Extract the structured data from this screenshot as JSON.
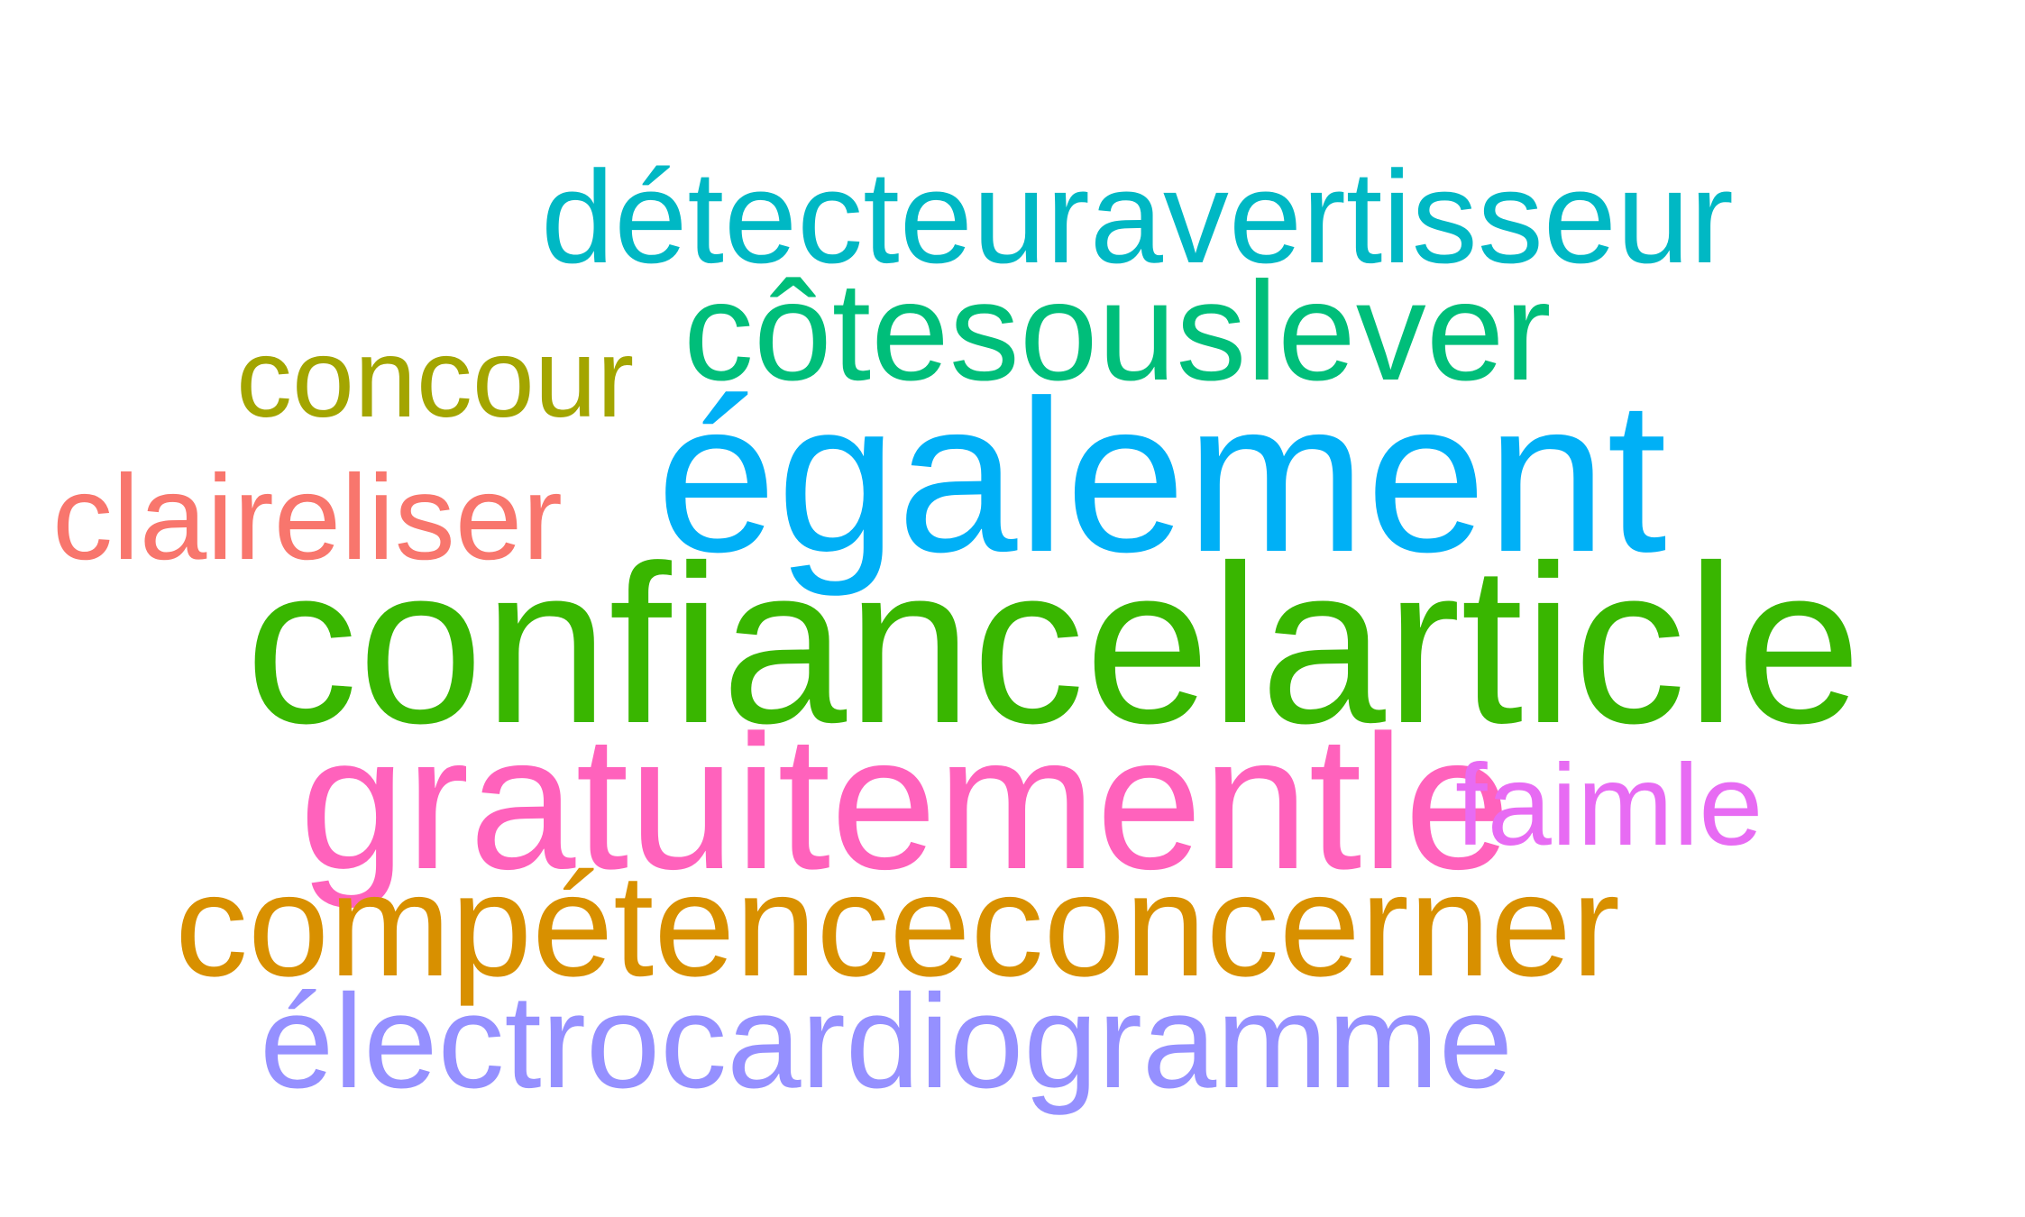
{
  "words": [
    {
      "text": "détecteuravertisseur",
      "color": "#00B8C4"
    },
    {
      "text": "côtesouslever",
      "color": "#00BE7A"
    },
    {
      "text": "concour",
      "color": "#A3A500"
    },
    {
      "text": "également",
      "color": "#00B0F6"
    },
    {
      "text": "claireliser",
      "color": "#F8766D"
    },
    {
      "text": "confiancelarticle",
      "color": "#39B600"
    },
    {
      "text": "gratuitementle",
      "color": "#FF62BC"
    },
    {
      "text": "faimle",
      "color": "#E76BF3"
    },
    {
      "text": "compétenceconcerner",
      "color": "#D89000"
    },
    {
      "text": "électrocardiogramme",
      "color": "#9590FF"
    }
  ]
}
